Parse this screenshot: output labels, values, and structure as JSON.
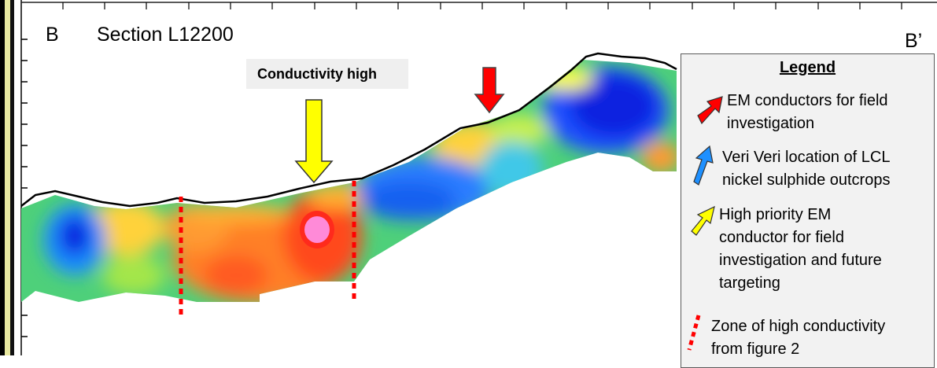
{
  "section": {
    "start_label": "B",
    "title": "Section L12200",
    "end_label": "B’"
  },
  "callout": {
    "label": "Conductivity high"
  },
  "colors": {
    "em_conductor_arrow": "#ff0000",
    "outcrop_arrow": "#1e90ff",
    "priority_arrow": "#ffff00",
    "high_conductivity_zone": "#ff0000",
    "topography_line": "#000000"
  },
  "legend": {
    "title": "Legend",
    "items": [
      {
        "icon": "red-arrow-icon",
        "label": "EM conductors for field investigation"
      },
      {
        "icon": "blue-arrow-icon",
        "label": "Veri Veri location of LCL nickel sulphide outcrops"
      },
      {
        "icon": "yellow-arrow-icon",
        "label": "High priority EM conductor for field investigation and future targeting"
      },
      {
        "icon": "red-dotted-line-icon",
        "label": "Zone of high conductivity from figure 2"
      }
    ]
  }
}
